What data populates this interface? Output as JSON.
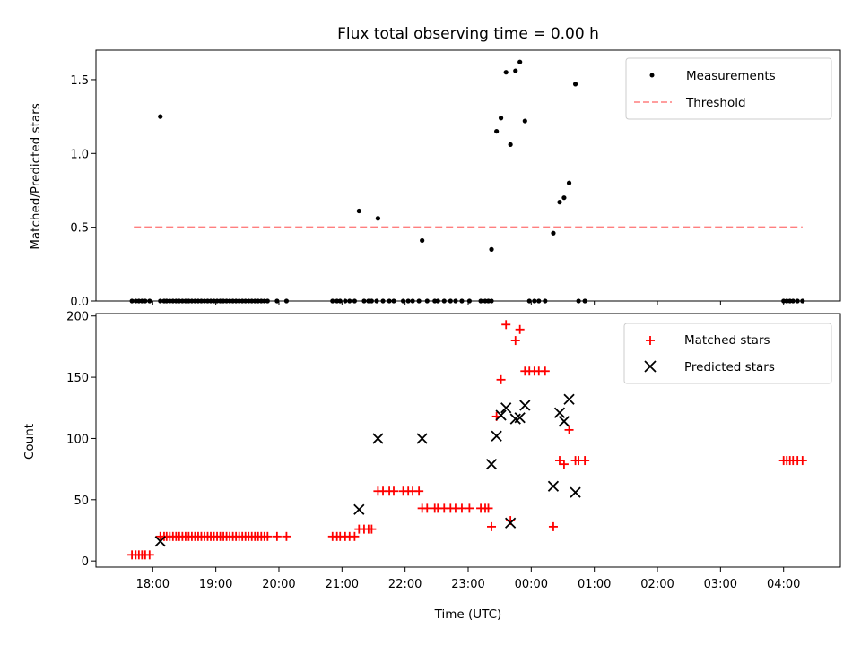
{
  "chart_data": [
    {
      "type": "scatter",
      "title": "Flux total observing time = 0.00 h",
      "xlabel": "",
      "ylabel": "Matched/Predicted stars",
      "xlim": [
        -0.9,
        10.9
      ],
      "ylim": [
        0,
        1.7
      ],
      "yticks": [
        0.0,
        0.5,
        1.0,
        1.5
      ],
      "ytick_labels": [
        "0.0",
        "0.5",
        "1.0",
        "1.5"
      ],
      "legend": {
        "position": "top-right",
        "entries": [
          "Measurements",
          "Threshold"
        ]
      },
      "threshold": {
        "name": "Threshold",
        "value": 0.5,
        "x_range": [
          -0.3,
          10.3
        ],
        "color": "#ff7f7f"
      },
      "series": [
        {
          "name": "Measurements",
          "color": "#000000",
          "x": [
            -0.33,
            -0.27,
            -0.22,
            -0.17,
            -0.12,
            -0.05,
            0.12,
            0.18,
            0.22,
            0.27,
            0.32,
            0.37,
            0.42,
            0.47,
            0.52,
            0.57,
            0.62,
            0.67,
            0.72,
            0.77,
            0.82,
            0.87,
            0.92,
            0.97,
            1.02,
            1.07,
            1.12,
            1.17,
            1.22,
            1.27,
            1.32,
            1.37,
            1.42,
            1.47,
            1.52,
            1.57,
            1.62,
            1.67,
            1.72,
            1.77,
            1.82,
            1.97,
            2.12,
            0.12,
            2.85,
            2.92,
            2.97,
            3.05,
            3.12,
            3.2,
            3.35,
            3.42,
            3.47,
            3.55,
            3.65,
            3.75,
            3.82,
            3.97,
            4.05,
            4.12,
            4.22,
            4.35,
            4.47,
            4.52,
            4.62,
            4.72,
            4.8,
            4.9,
            5.02,
            5.2,
            5.27,
            5.32,
            5.37,
            3.27,
            3.57,
            4.27,
            5.37,
            5.45,
            5.52,
            5.6,
            5.67,
            5.75,
            5.82,
            5.9,
            5.97,
            6.05,
            6.12,
            6.22,
            6.35,
            6.45,
            6.52,
            6.6,
            6.7,
            6.75,
            6.85,
            10.0,
            10.05,
            10.1,
            10.15,
            10.22,
            10.3
          ],
          "y": [
            0,
            0,
            0,
            0,
            0,
            0,
            0,
            0,
            0,
            0,
            0,
            0,
            0,
            0,
            0,
            0,
            0,
            0,
            0,
            0,
            0,
            0,
            0,
            0,
            0,
            0,
            0,
            0,
            0,
            0,
            0,
            0,
            0,
            0,
            0,
            0,
            0,
            0,
            0,
            0,
            0,
            0,
            0,
            1.25,
            0,
            0,
            0,
            0,
            0,
            0,
            0,
            0,
            0,
            0,
            0,
            0,
            0,
            0,
            0,
            0,
            0,
            0,
            0,
            0,
            0,
            0,
            0,
            0,
            0,
            0,
            0,
            0,
            0,
            0.61,
            0.56,
            0.41,
            0.35,
            1.15,
            1.24,
            1.55,
            1.06,
            1.56,
            1.62,
            1.22,
            0,
            0,
            0,
            0,
            0.46,
            0.67,
            0.7,
            0.8,
            1.47,
            0,
            0,
            0,
            0,
            0,
            0,
            0,
            0
          ]
        }
      ]
    },
    {
      "type": "scatter",
      "title": "",
      "xlabel": "Time (UTC)",
      "ylabel": "Count",
      "xlim": [
        -0.9,
        10.9
      ],
      "ylim": [
        -5,
        202
      ],
      "yticks": [
        0,
        50,
        100,
        150,
        200
      ],
      "ytick_labels": [
        "0",
        "50",
        "100",
        "150",
        "200"
      ],
      "xticks": [
        0,
        1,
        2,
        3,
        4,
        5,
        6,
        7,
        8,
        9,
        10
      ],
      "xtick_labels": [
        "18:00",
        "19:00",
        "20:00",
        "21:00",
        "22:00",
        "23:00",
        "00:00",
        "01:00",
        "02:00",
        "03:00",
        "04:00"
      ],
      "legend": {
        "position": "top-right",
        "entries": [
          "Matched stars",
          "Predicted stars"
        ]
      },
      "series": [
        {
          "name": "Matched stars",
          "color": "#ff0000",
          "marker": "plus",
          "x": [
            -0.33,
            -0.27,
            -0.22,
            -0.17,
            -0.12,
            -0.05,
            0.12,
            0.18,
            0.22,
            0.27,
            0.32,
            0.37,
            0.42,
            0.47,
            0.52,
            0.57,
            0.62,
            0.67,
            0.72,
            0.77,
            0.82,
            0.87,
            0.92,
            0.97,
            1.02,
            1.07,
            1.12,
            1.17,
            1.22,
            1.27,
            1.32,
            1.37,
            1.42,
            1.47,
            1.52,
            1.57,
            1.62,
            1.67,
            1.72,
            1.77,
            1.82,
            1.97,
            2.12,
            2.85,
            2.92,
            2.97,
            3.05,
            3.12,
            3.2,
            3.27,
            3.35,
            3.42,
            3.47,
            3.57,
            3.65,
            3.75,
            3.82,
            3.97,
            4.05,
            4.12,
            4.22,
            4.27,
            4.35,
            4.47,
            4.52,
            4.62,
            4.72,
            4.8,
            4.9,
            5.02,
            5.2,
            5.27,
            5.32,
            5.37,
            5.45,
            5.52,
            5.6,
            5.67,
            5.75,
            5.82,
            5.9,
            5.97,
            6.05,
            6.12,
            6.22,
            6.35,
            6.45,
            6.52,
            6.6,
            6.7,
            6.75,
            6.85,
            10.0,
            10.05,
            10.1,
            10.15,
            10.22,
            10.3
          ],
          "y": [
            5,
            5,
            5,
            5,
            5,
            5,
            20,
            20,
            20,
            20,
            20,
            20,
            20,
            20,
            20,
            20,
            20,
            20,
            20,
            20,
            20,
            20,
            20,
            20,
            20,
            20,
            20,
            20,
            20,
            20,
            20,
            20,
            20,
            20,
            20,
            20,
            20,
            20,
            20,
            20,
            20,
            20,
            20,
            20,
            20,
            20,
            20,
            20,
            20,
            26,
            26,
            26,
            26,
            57,
            57,
            57,
            57,
            57,
            57,
            57,
            57,
            43,
            43,
            43,
            43,
            43,
            43,
            43,
            43,
            43,
            43,
            43,
            43,
            28,
            118,
            148,
            193,
            33,
            180,
            189,
            155,
            155,
            155,
            155,
            155,
            28,
            82,
            79,
            107,
            82,
            82,
            82,
            82,
            82,
            82,
            82,
            82,
            82
          ]
        },
        {
          "name": "Predicted stars",
          "color": "#000000",
          "marker": "x",
          "x": [
            0.12,
            3.27,
            3.57,
            4.27,
            5.37,
            5.45,
            5.52,
            5.6,
            5.67,
            5.75,
            5.82,
            5.9,
            6.35,
            6.45,
            6.52,
            6.6,
            6.7
          ],
          "y": [
            16,
            42,
            100,
            100,
            79,
            102,
            119,
            125,
            31,
            116,
            117,
            127,
            61,
            121,
            114,
            132,
            56
          ]
        }
      ]
    }
  ]
}
